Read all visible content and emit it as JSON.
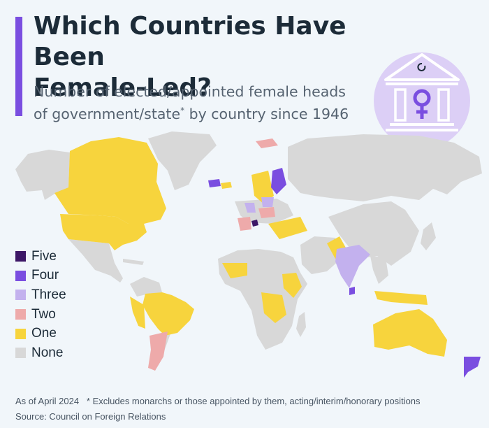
{
  "title_line1": "Which Countries Have Been",
  "title_line2": "Female-Led?",
  "subtitle_line1": "Number of elected/appointed female heads",
  "subtitle_line2_a": "of government/state",
  "subtitle_marker": "*",
  "subtitle_line2_b": " by country since 1946",
  "legend": [
    {
      "label": "Five",
      "color": "#3d1766"
    },
    {
      "label": "Four",
      "color": "#7a4ee0"
    },
    {
      "label": "Three",
      "color": "#c3b1ee"
    },
    {
      "label": "Two",
      "color": "#eeaaaa"
    },
    {
      "label": "One",
      "color": "#f7d43d"
    },
    {
      "label": "None",
      "color": "#d8d8d8"
    }
  ],
  "colors": {
    "ocean": "#f1f6fa",
    "accent": "#7a4ee0",
    "emblem_circle": "#dccff6",
    "emblem_ink": "#ffffff"
  },
  "emblem_icon": "government-building-female-symbol-icon",
  "footnote": "As of April 2024   * Excludes monarchs or those appointed by them, acting/interim/honorary positions",
  "source": "Source: Council on Foreign Relations"
}
